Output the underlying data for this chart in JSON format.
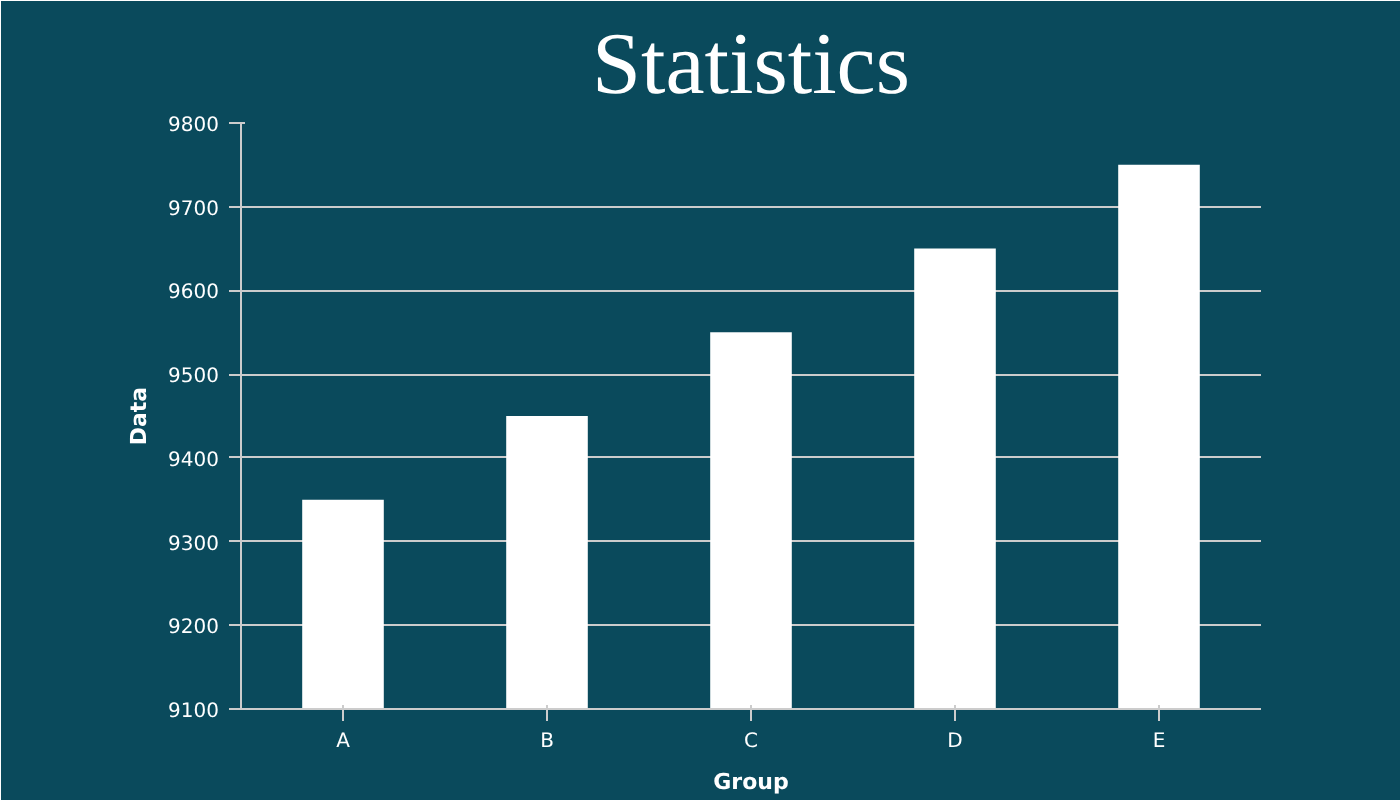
{
  "chart_data": {
    "type": "bar",
    "title": "Statistics",
    "xlabel": "Group",
    "ylabel": "Data",
    "categories": [
      "A",
      "B",
      "C",
      "D",
      "E"
    ],
    "values": [
      9350,
      9450,
      9550,
      9650,
      9750
    ],
    "color": "#ffffff",
    "ylim": [
      9100,
      9800
    ],
    "yticks": [
      9100,
      9200,
      9300,
      9400,
      9500,
      9600,
      9700,
      9800
    ],
    "grid": "y"
  }
}
